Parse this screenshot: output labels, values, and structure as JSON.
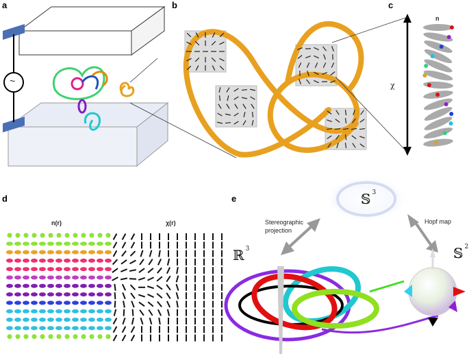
{
  "panels": {
    "a": {
      "label": "a",
      "source_symbol": "~"
    },
    "b": {
      "label": "b"
    },
    "c": {
      "label": "c",
      "n_label": "n",
      "chi_label": "χ"
    },
    "d": {
      "label": "d",
      "left_title": "n(r)",
      "right_title": "χ(r)"
    },
    "e": {
      "label": "e",
      "s3": "𝕊",
      "s3_exp": "3",
      "s2": "𝕊",
      "s2_exp": "2",
      "r3": "ℝ",
      "r3_exp": "3",
      "stereo_line1": "Stereographic",
      "stereo_line2": "projection",
      "hopf": "Hopf map"
    }
  },
  "colors": {
    "knot": "#e8a020",
    "plate": "#4a6fb5",
    "ring_purple": "#8a2be2",
    "ring_red": "#e01010",
    "ring_cyan": "#20c8d0",
    "ring_green": "#90e020",
    "ring_black": "#000000"
  },
  "grid_row_colors": [
    "#8fe23a",
    "#f0a020",
    "#f03070",
    "#c040c0",
    "#8020b0",
    "#3040e0",
    "#30c0e0",
    "#30c0e0",
    "#8fe23a"
  ]
}
